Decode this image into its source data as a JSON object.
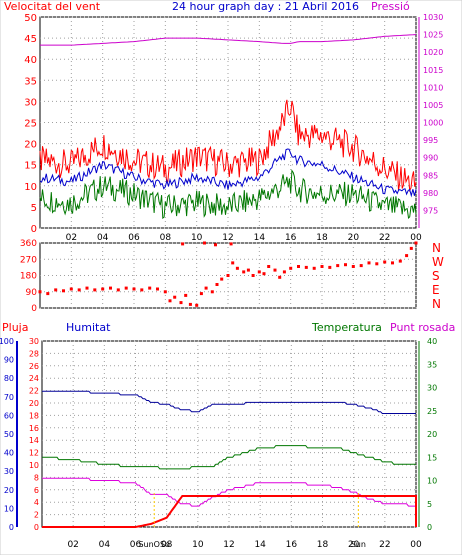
{
  "title": "24 hour graph day : 21 Abril 2016",
  "colors": {
    "wind": "#ff0000",
    "wind_avg": "#0000cc",
    "wind_min": "#007700",
    "pressure": "#cc00cc",
    "direction": "#ff0000",
    "humidity": "#000099",
    "temperature": "#007700",
    "dewpoint": "#dd00dd",
    "rain": "#ff0000",
    "sun": "#ffcc00",
    "grid": "#a0a0a0"
  },
  "x_ticks": [
    "02",
    "04",
    "06",
    "08",
    "10",
    "12",
    "14",
    "16",
    "18",
    "20",
    "22",
    "00"
  ],
  "chart_data": [
    {
      "type": "line",
      "labels": {
        "left": "Velocitat del vent",
        "right": "Pressió"
      },
      "ylim_left": [
        0,
        50
      ],
      "ylim_right": [
        970,
        1030
      ],
      "y_ticks_left": [
        "0",
        "5",
        "10",
        "15",
        "20",
        "25",
        "30",
        "35",
        "40",
        "45",
        "50"
      ],
      "y_ticks_right": [
        "975",
        "980",
        "985",
        "990",
        "995",
        "1000",
        "1005",
        "1010",
        "1015",
        "1020",
        "1025",
        "1030"
      ],
      "x_hours": [
        0,
        2,
        4,
        6,
        8,
        10,
        12,
        14,
        15.5,
        16,
        16.5,
        18,
        20,
        22,
        24
      ],
      "series": [
        {
          "key": "gust",
          "axis": "left",
          "values": [
            16,
            15,
            20,
            16,
            14,
            17,
            15,
            16,
            25,
            29,
            22,
            22,
            19,
            14,
            10
          ]
        },
        {
          "key": "avg",
          "axis": "left",
          "values": [
            12,
            11,
            15,
            12,
            10,
            12,
            10,
            12,
            17,
            18,
            16,
            15,
            12,
            9,
            8
          ]
        },
        {
          "key": "min",
          "axis": "left",
          "values": [
            7,
            6,
            10,
            8,
            5,
            6,
            5,
            7,
            10,
            11,
            9,
            8,
            8,
            5,
            4
          ]
        },
        {
          "key": "pressure",
          "axis": "right",
          "values": [
            1022,
            1022,
            1022.5,
            1023,
            1024,
            1024,
            1023.5,
            1023,
            1022.5,
            1022.5,
            1023,
            1023,
            1023.5,
            1024.5,
            1025
          ]
        }
      ]
    },
    {
      "type": "scatter",
      "labels": {
        "right": [
          "N",
          "W",
          "S",
          "E",
          "N"
        ]
      },
      "ylim": [
        0,
        360
      ],
      "y_ticks": [
        "0",
        "90",
        "180",
        "270",
        "360"
      ],
      "points": [
        [
          0,
          90
        ],
        [
          0.5,
          80
        ],
        [
          1,
          100
        ],
        [
          1.5,
          95
        ],
        [
          2,
          105
        ],
        [
          2.5,
          100
        ],
        [
          3,
          110
        ],
        [
          3.5,
          100
        ],
        [
          4,
          105
        ],
        [
          4.5,
          110
        ],
        [
          5,
          100
        ],
        [
          5.5,
          110
        ],
        [
          6,
          105
        ],
        [
          6.5,
          100
        ],
        [
          7,
          110
        ],
        [
          7.5,
          105
        ],
        [
          8,
          90
        ],
        [
          8.3,
          40
        ],
        [
          8.6,
          60
        ],
        [
          9,
          30
        ],
        [
          9.3,
          70
        ],
        [
          9.6,
          20
        ],
        [
          10,
          15
        ],
        [
          10.3,
          80
        ],
        [
          10.6,
          110
        ],
        [
          11,
          90
        ],
        [
          11.3,
          130
        ],
        [
          11.6,
          160
        ],
        [
          12,
          180
        ],
        [
          12.3,
          250
        ],
        [
          12.6,
          220
        ],
        [
          13,
          200
        ],
        [
          13.3,
          210
        ],
        [
          13.6,
          180
        ],
        [
          14,
          200
        ],
        [
          14.3,
          190
        ],
        [
          14.6,
          230
        ],
        [
          15,
          210
        ],
        [
          15.3,
          170
        ],
        [
          15.6,
          200
        ],
        [
          16,
          220
        ],
        [
          16.5,
          230
        ],
        [
          17,
          225
        ],
        [
          17.5,
          220
        ],
        [
          18,
          230
        ],
        [
          18.5,
          225
        ],
        [
          19,
          235
        ],
        [
          19.5,
          240
        ],
        [
          20,
          230
        ],
        [
          20.5,
          235
        ],
        [
          21,
          250
        ],
        [
          21.5,
          245
        ],
        [
          22,
          255
        ],
        [
          22.5,
          250
        ],
        [
          23,
          260
        ],
        [
          23.4,
          290
        ],
        [
          23.7,
          330
        ],
        [
          24,
          360
        ],
        [
          9.1,
          355
        ],
        [
          10.5,
          360
        ],
        [
          11.2,
          350
        ],
        [
          12.2,
          355
        ]
      ]
    },
    {
      "type": "line",
      "labels": {
        "left_outer": "Pluja",
        "left_inner": "Humitat",
        "right_inner": "Temperatura",
        "right_outer": "Punt rosada"
      },
      "ylim_humidity": [
        0,
        100
      ],
      "ylim_temp": [
        0,
        40
      ],
      "ylim_rain": [
        0,
        30
      ],
      "y_ticks_humidity": [
        "0",
        "10",
        "20",
        "30",
        "40",
        "50",
        "60",
        "70",
        "80",
        "90",
        "100"
      ],
      "y_ticks_rain": [
        "0",
        "2",
        "4",
        "6",
        "8",
        "10",
        "12",
        "14",
        "16",
        "18",
        "20",
        "22",
        "24",
        "26",
        "28",
        "30"
      ],
      "y_ticks_temp": [
        "0",
        "5",
        "10",
        "15",
        "20",
        "25",
        "30",
        "35",
        "40"
      ],
      "sun_labels": [
        "SunOSo",
        "Sun"
      ],
      "x_hours": [
        0,
        2,
        4,
        6,
        7,
        8,
        9,
        10,
        11,
        12,
        14,
        16,
        18,
        19,
        20,
        21,
        22,
        23,
        24
      ],
      "series": [
        {
          "key": "humidity",
          "axis": "humidity",
          "values": [
            73,
            73,
            72,
            71,
            67,
            66,
            63,
            62,
            66,
            66,
            67,
            67,
            67,
            67,
            66,
            64,
            61,
            61,
            61
          ]
        },
        {
          "key": "temperature",
          "axis": "temp",
          "values": [
            15,
            14.5,
            13.5,
            13,
            13,
            12.5,
            12.5,
            13,
            13,
            15,
            17,
            17.5,
            17,
            17,
            16,
            15,
            14,
            13.5,
            13.5
          ]
        },
        {
          "key": "dewpoint",
          "axis": "temp",
          "values": [
            10.5,
            10.5,
            10,
            9.5,
            7,
            7,
            5,
            4.5,
            6.5,
            8,
            9.5,
            9.5,
            9,
            8.5,
            7.5,
            6,
            5,
            5,
            4.5
          ]
        },
        {
          "key": "rain",
          "axis": "rain",
          "values": [
            0,
            0,
            0,
            0,
            0.5,
            1.5,
            5,
            5,
            5,
            5,
            5,
            5,
            5,
            5,
            5,
            5,
            5,
            5,
            5
          ]
        }
      ]
    }
  ]
}
